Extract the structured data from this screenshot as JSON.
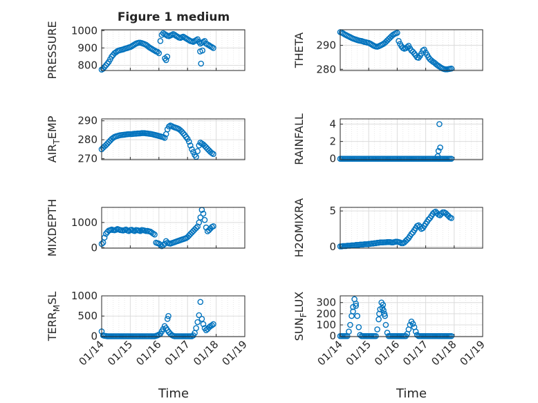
{
  "figure_title": "Figure 1 medium",
  "x_axis": {
    "label": "Time",
    "ticks": [
      "01/14",
      "01/15",
      "01/16",
      "01/17",
      "01/18",
      "01/19"
    ],
    "range_days": [
      14,
      19
    ]
  },
  "colors": {
    "marker": "#0072bd",
    "axis": "#262626",
    "grid": "#dcdcdc",
    "minor_grid": "#e6e6e6"
  },
  "chart_data": [
    {
      "type": "scatter",
      "ylabel": "PRESSURE",
      "ylim": [
        770,
        1005
      ],
      "yticks": [
        800,
        900,
        1000
      ],
      "x": [
        14.0,
        14.05,
        14.1,
        14.15,
        14.2,
        14.25,
        14.3,
        14.35,
        14.4,
        14.45,
        14.5,
        14.55,
        14.6,
        14.65,
        14.7,
        14.75,
        14.8,
        14.85,
        14.9,
        14.95,
        15.0,
        15.05,
        15.1,
        15.15,
        15.2,
        15.25,
        15.3,
        15.35,
        15.4,
        15.45,
        15.5,
        15.55,
        15.6,
        15.65,
        15.7,
        15.75,
        15.8,
        15.85,
        15.9,
        15.95,
        16.0,
        16.05,
        16.1,
        16.15,
        16.2,
        16.25,
        16.3,
        16.35,
        16.4,
        16.45,
        16.5,
        16.55,
        16.6,
        16.65,
        16.7,
        16.75,
        16.8,
        16.85,
        16.9,
        16.95,
        17.0,
        17.05,
        17.1,
        17.15,
        17.2,
        17.25,
        17.3,
        17.35,
        17.4,
        17.45,
        17.5,
        17.55,
        17.6,
        17.65,
        17.7,
        17.75,
        17.8,
        17.85,
        17.9,
        16.21,
        16.25,
        16.29,
        17.44,
        17.52,
        17.47
      ],
      "y": [
        775,
        780,
        790,
        800,
        810,
        820,
        835,
        850,
        860,
        870,
        875,
        882,
        885,
        888,
        890,
        892,
        895,
        898,
        900,
        903,
        905,
        910,
        915,
        920,
        925,
        928,
        930,
        930,
        928,
        925,
        922,
        918,
        912,
        905,
        900,
        895,
        890,
        885,
        880,
        878,
        870,
        940,
        975,
        985,
        980,
        975,
        970,
        968,
        972,
        975,
        980,
        975,
        970,
        965,
        960,
        958,
        962,
        965,
        960,
        955,
        950,
        945,
        940,
        938,
        935,
        940,
        945,
        950,
        935,
        925,
        930,
        935,
        940,
        925,
        920,
        915,
        910,
        905,
        900,
        840,
        830,
        850,
        880,
        885,
        810
      ]
    },
    {
      "type": "scatter",
      "ylabel": "THETA",
      "ylim": [
        279.5,
        296.5
      ],
      "yticks": [
        280,
        290
      ],
      "x": [
        14.0,
        14.05,
        14.1,
        14.15,
        14.2,
        14.25,
        14.3,
        14.35,
        14.4,
        14.45,
        14.5,
        14.55,
        14.6,
        14.65,
        14.7,
        14.75,
        14.8,
        14.85,
        14.9,
        14.95,
        15.0,
        15.05,
        15.1,
        15.15,
        15.2,
        15.25,
        15.3,
        15.35,
        15.4,
        15.45,
        15.5,
        15.55,
        15.6,
        15.65,
        15.7,
        15.75,
        15.8,
        15.85,
        15.9,
        15.95,
        16.0,
        16.05,
        16.1,
        16.15,
        16.2,
        16.25,
        16.3,
        16.35,
        16.4,
        16.45,
        16.5,
        16.55,
        16.6,
        16.65,
        16.7,
        16.75,
        16.8,
        16.85,
        16.9,
        16.95,
        17.0,
        17.05,
        17.1,
        17.15,
        17.2,
        17.25,
        17.3,
        17.35,
        17.4,
        17.45,
        17.5,
        17.55,
        17.6,
        17.65,
        17.7,
        17.75,
        17.8,
        17.85,
        17.9
      ],
      "y": [
        295.5,
        295.3,
        295.0,
        294.6,
        294.3,
        294.0,
        293.7,
        293.4,
        293.1,
        292.8,
        292.6,
        292.4,
        292.2,
        292.0,
        291.9,
        291.8,
        291.6,
        291.4,
        291.3,
        291.1,
        291.0,
        290.7,
        290.4,
        290.0,
        289.7,
        289.5,
        289.4,
        289.6,
        289.9,
        290.2,
        290.5,
        290.9,
        291.4,
        292.0,
        292.6,
        293.2,
        293.8,
        294.3,
        294.7,
        295.0,
        295.2,
        291.8,
        290.6,
        289.6,
        288.9,
        288.6,
        288.8,
        289.3,
        289.8,
        288.7,
        287.8,
        287.3,
        286.6,
        285.8,
        285.0,
        284.8,
        285.6,
        286.6,
        287.8,
        288.2,
        287.0,
        286.0,
        285.0,
        284.2,
        283.7,
        283.2,
        282.8,
        282.3,
        281.8,
        281.4,
        281.0,
        280.6,
        280.3,
        280.1,
        280.0,
        280.0,
        280.1,
        280.2,
        280.3
      ]
    },
    {
      "type": "scatter",
      "ylabel": "AIR_TEMP",
      "ylim": [
        269.5,
        291
      ],
      "yticks": [
        270,
        280,
        290
      ],
      "x": [
        14.0,
        14.05,
        14.1,
        14.15,
        14.2,
        14.25,
        14.3,
        14.35,
        14.4,
        14.45,
        14.5,
        14.55,
        14.6,
        14.65,
        14.7,
        14.75,
        14.8,
        14.85,
        14.9,
        14.95,
        15.0,
        15.05,
        15.1,
        15.15,
        15.2,
        15.25,
        15.3,
        15.35,
        15.4,
        15.45,
        15.5,
        15.55,
        15.6,
        15.65,
        15.7,
        15.75,
        15.8,
        15.85,
        15.9,
        15.95,
        16.0,
        16.05,
        16.1,
        16.15,
        16.2,
        16.25,
        16.3,
        16.35,
        16.4,
        16.45,
        16.5,
        16.55,
        16.6,
        16.65,
        16.7,
        16.75,
        16.8,
        16.85,
        16.9,
        16.95,
        17.0,
        17.05,
        17.1,
        17.15,
        17.2,
        17.25,
        17.3,
        17.35,
        17.4,
        17.45,
        17.5,
        17.55,
        17.6,
        17.65,
        17.7,
        17.75,
        17.8,
        17.85,
        17.9
      ],
      "y": [
        275.0,
        275.8,
        276.5,
        277.2,
        278.0,
        278.8,
        279.6,
        280.4,
        281.0,
        281.5,
        281.8,
        282.0,
        282.2,
        282.4,
        282.5,
        282.6,
        282.7,
        282.8,
        282.9,
        283.0,
        283.0,
        283.0,
        283.1,
        283.2,
        283.2,
        283.3,
        283.3,
        283.4,
        283.5,
        283.5,
        283.5,
        283.4,
        283.3,
        283.2,
        283.1,
        283.0,
        282.8,
        282.6,
        282.4,
        282.2,
        282.0,
        281.8,
        281.6,
        281.4,
        281.0,
        283.0,
        285.5,
        287.0,
        287.5,
        287.2,
        286.8,
        286.5,
        286.3,
        286.0,
        285.6,
        285.0,
        284.3,
        283.4,
        282.5,
        281.5,
        280.5,
        279.0,
        277.0,
        275.0,
        273.5,
        272.0,
        271.0,
        274.0,
        277.0,
        278.5,
        278.0,
        277.5,
        276.8,
        276.0,
        275.2,
        274.4,
        273.6,
        273.0,
        272.5
      ]
    },
    {
      "type": "scatter",
      "ylabel": "RAINFALL",
      "ylim": [
        -0.1,
        4.6
      ],
      "yticks": [
        0,
        2,
        4
      ],
      "x": [
        14.0,
        14.05,
        14.1,
        14.15,
        14.2,
        14.25,
        14.3,
        14.35,
        14.4,
        14.45,
        14.5,
        14.55,
        14.6,
        14.65,
        14.7,
        14.75,
        14.8,
        14.85,
        14.9,
        14.95,
        15.0,
        15.05,
        15.1,
        15.15,
        15.2,
        15.25,
        15.3,
        15.35,
        15.4,
        15.45,
        15.5,
        15.55,
        15.6,
        15.65,
        15.7,
        15.75,
        15.8,
        15.85,
        15.9,
        15.95,
        16.0,
        16.05,
        16.1,
        16.15,
        16.2,
        16.25,
        16.3,
        16.35,
        16.4,
        16.45,
        16.5,
        16.55,
        16.6,
        16.65,
        16.7,
        16.75,
        16.8,
        16.85,
        16.9,
        16.95,
        17.0,
        17.05,
        17.1,
        17.15,
        17.2,
        17.25,
        17.3,
        17.35,
        17.4,
        17.45,
        17.5,
        17.55,
        17.6,
        17.65,
        17.7,
        17.75,
        17.8,
        17.85,
        17.9,
        17.42,
        17.45,
        17.48,
        17.51
      ],
      "y": [
        0,
        0,
        0,
        0,
        0,
        0,
        0,
        0,
        0,
        0,
        0,
        0,
        0,
        0,
        0,
        0,
        0,
        0,
        0,
        0,
        0,
        0,
        0,
        0,
        0,
        0,
        0,
        0,
        0,
        0,
        0,
        0,
        0,
        0,
        0,
        0,
        0,
        0,
        0,
        0,
        0,
        0,
        0,
        0,
        0,
        0,
        0,
        0,
        0,
        0,
        0,
        0,
        0,
        0,
        0,
        0,
        0,
        0,
        0,
        0,
        0,
        0,
        0,
        0,
        0,
        0,
        0,
        0,
        0,
        0,
        0,
        0,
        0,
        0,
        0,
        0,
        0,
        0,
        0,
        0.3,
        0.9,
        4.0,
        1.3
      ]
    },
    {
      "type": "scatter",
      "ylabel": "MIXDEPTH",
      "ylim": [
        -20,
        1600
      ],
      "yticks": [
        0,
        1000
      ],
      "x": [
        14.0,
        14.05,
        14.1,
        14.15,
        14.2,
        14.25,
        14.3,
        14.35,
        14.4,
        14.45,
        14.5,
        14.55,
        14.6,
        14.65,
        14.7,
        14.75,
        14.8,
        14.85,
        14.9,
        14.95,
        15.0,
        15.05,
        15.1,
        15.15,
        15.2,
        15.25,
        15.3,
        15.35,
        15.4,
        15.45,
        15.5,
        15.55,
        15.6,
        15.65,
        15.7,
        15.75,
        15.8,
        15.85,
        15.9,
        15.95,
        16.0,
        16.05,
        16.1,
        16.15,
        16.2,
        16.25,
        16.3,
        16.35,
        16.4,
        16.45,
        16.5,
        16.55,
        16.6,
        16.65,
        16.7,
        16.75,
        16.8,
        16.85,
        16.9,
        16.95,
        17.0,
        17.05,
        17.1,
        17.15,
        17.2,
        17.25,
        17.3,
        17.35,
        17.4,
        17.45,
        17.5,
        17.55,
        17.6,
        17.65,
        17.7,
        17.75,
        17.8,
        17.85,
        17.9
      ],
      "y": [
        150,
        200,
        400,
        550,
        620,
        680,
        700,
        720,
        700,
        690,
        710,
        740,
        720,
        700,
        690,
        680,
        700,
        720,
        680,
        660,
        700,
        710,
        680,
        660,
        700,
        690,
        680,
        660,
        700,
        690,
        680,
        660,
        670,
        650,
        640,
        600,
        560,
        520,
        200,
        180,
        160,
        120,
        60,
        100,
        150,
        260,
        200,
        170,
        160,
        180,
        200,
        220,
        240,
        260,
        280,
        300,
        320,
        340,
        360,
        380,
        420,
        480,
        540,
        600,
        660,
        720,
        780,
        840,
        1000,
        1200,
        1500,
        1350,
        1100,
        800,
        650,
        700,
        760,
        820,
        850
      ]
    },
    {
      "type": "scatter",
      "ylabel": "H2OMIXRA",
      "ylim": [
        -0.2,
        5.5
      ],
      "yticks": [
        0,
        5
      ],
      "x": [
        14.0,
        14.05,
        14.1,
        14.15,
        14.2,
        14.25,
        14.3,
        14.35,
        14.4,
        14.45,
        14.5,
        14.55,
        14.6,
        14.65,
        14.7,
        14.75,
        14.8,
        14.85,
        14.9,
        14.95,
        15.0,
        15.05,
        15.1,
        15.15,
        15.2,
        15.25,
        15.3,
        15.35,
        15.4,
        15.45,
        15.5,
        15.55,
        15.6,
        15.65,
        15.7,
        15.75,
        15.8,
        15.85,
        15.9,
        15.95,
        16.0,
        16.05,
        16.1,
        16.15,
        16.2,
        16.25,
        16.3,
        16.35,
        16.4,
        16.45,
        16.5,
        16.55,
        16.6,
        16.65,
        16.7,
        16.75,
        16.8,
        16.85,
        16.9,
        16.95,
        17.0,
        17.05,
        17.1,
        17.15,
        17.2,
        17.25,
        17.3,
        17.35,
        17.4,
        17.45,
        17.5,
        17.55,
        17.6,
        17.65,
        17.7,
        17.75,
        17.8,
        17.85,
        17.9
      ],
      "y": [
        0.05,
        0.05,
        0.1,
        0.1,
        0.1,
        0.15,
        0.15,
        0.15,
        0.2,
        0.2,
        0.2,
        0.25,
        0.25,
        0.25,
        0.3,
        0.3,
        0.3,
        0.35,
        0.35,
        0.35,
        0.4,
        0.4,
        0.45,
        0.45,
        0.5,
        0.5,
        0.55,
        0.55,
        0.6,
        0.6,
        0.6,
        0.62,
        0.62,
        0.65,
        0.65,
        0.65,
        0.6,
        0.6,
        0.65,
        0.7,
        0.7,
        0.65,
        0.6,
        0.5,
        0.5,
        0.6,
        0.8,
        1.0,
        1.2,
        1.5,
        1.8,
        2.0,
        2.3,
        2.6,
        2.9,
        3.0,
        2.8,
        2.5,
        2.6,
        2.9,
        3.2,
        3.5,
        3.8,
        4.0,
        4.3,
        4.6,
        4.8,
        4.9,
        4.7,
        4.5,
        4.4,
        4.6,
        4.8,
        4.8,
        4.7,
        4.5,
        4.3,
        4.1,
        4.0
      ]
    },
    {
      "type": "scatter",
      "ylabel": "TERR_MSL",
      "ylim": [
        -10,
        1000
      ],
      "yticks": [
        0,
        500,
        1000
      ],
      "x": [
        14.0,
        14.05,
        14.1,
        14.15,
        14.2,
        14.25,
        14.3,
        14.35,
        14.4,
        14.45,
        14.5,
        14.55,
        14.6,
        14.65,
        14.7,
        14.75,
        14.8,
        14.85,
        14.9,
        14.95,
        15.0,
        15.05,
        15.1,
        15.15,
        15.2,
        15.25,
        15.3,
        15.35,
        15.4,
        15.45,
        15.5,
        15.55,
        15.6,
        15.65,
        15.7,
        15.75,
        15.8,
        15.85,
        15.9,
        15.95,
        16.0,
        16.05,
        16.1,
        16.15,
        16.2,
        16.25,
        16.3,
        16.35,
        16.4,
        16.45,
        16.5,
        16.55,
        16.6,
        16.65,
        16.7,
        16.75,
        16.8,
        16.85,
        16.9,
        16.95,
        17.0,
        17.05,
        17.1,
        17.15,
        17.2,
        17.25,
        17.3,
        17.35,
        17.4,
        17.45,
        17.5,
        17.55,
        17.6,
        17.65,
        17.7,
        17.75,
        17.8,
        17.85,
        17.9,
        16.3,
        16.33
      ],
      "y": [
        120,
        20,
        10,
        5,
        0,
        0,
        0,
        0,
        0,
        0,
        0,
        0,
        0,
        0,
        0,
        0,
        0,
        0,
        0,
        0,
        0,
        0,
        0,
        0,
        0,
        0,
        0,
        0,
        0,
        0,
        0,
        0,
        0,
        0,
        0,
        0,
        0,
        0,
        10,
        20,
        40,
        60,
        120,
        180,
        250,
        200,
        150,
        100,
        60,
        30,
        10,
        0,
        0,
        0,
        0,
        0,
        0,
        0,
        0,
        0,
        0,
        0,
        0,
        0,
        20,
        80,
        200,
        350,
        520,
        850,
        430,
        300,
        200,
        150,
        180,
        220,
        250,
        270,
        300,
        430,
        500
      ]
    },
    {
      "type": "scatter",
      "ylabel": "SUN_FLUX",
      "ylim": [
        -5,
        360
      ],
      "yticks": [
        0,
        100,
        200,
        300
      ],
      "x": [
        14.0,
        14.05,
        14.1,
        14.15,
        14.2,
        14.25,
        14.3,
        14.35,
        14.4,
        14.45,
        14.5,
        14.55,
        14.6,
        14.65,
        14.7,
        14.75,
        14.8,
        14.85,
        14.9,
        14.95,
        15.0,
        15.05,
        15.1,
        15.15,
        15.2,
        15.25,
        15.3,
        15.35,
        15.4,
        15.45,
        15.5,
        15.55,
        15.6,
        15.65,
        15.7,
        15.75,
        15.8,
        15.85,
        15.9,
        15.95,
        16.0,
        16.05,
        16.1,
        16.15,
        16.2,
        16.25,
        16.3,
        16.35,
        16.4,
        16.45,
        16.5,
        16.55,
        16.6,
        16.65,
        16.7,
        16.75,
        16.8,
        16.85,
        16.9,
        16.95,
        17.0,
        17.05,
        17.1,
        17.15,
        17.2,
        17.25,
        17.3,
        17.35,
        17.4,
        17.45,
        17.5,
        17.55,
        17.6,
        17.65,
        17.7,
        17.75,
        17.8,
        17.85,
        17.9,
        14.45,
        14.55,
        15.37,
        15.48,
        15.52,
        15.57
      ],
      "y": [
        0,
        0,
        0,
        0,
        0,
        0,
        40,
        100,
        180,
        260,
        330,
        290,
        180,
        80,
        10,
        0,
        0,
        0,
        0,
        0,
        0,
        0,
        0,
        0,
        0,
        0,
        60,
        150,
        240,
        300,
        280,
        200,
        100,
        30,
        0,
        0,
        0,
        0,
        0,
        0,
        0,
        0,
        0,
        0,
        0,
        0,
        0,
        20,
        60,
        100,
        130,
        110,
        80,
        40,
        10,
        0,
        0,
        0,
        0,
        0,
        0,
        0,
        0,
        0,
        0,
        0,
        0,
        0,
        0,
        0,
        0,
        0,
        0,
        0,
        0,
        0,
        0,
        0,
        0,
        220,
        270,
        200,
        250,
        230,
        180
      ]
    }
  ]
}
